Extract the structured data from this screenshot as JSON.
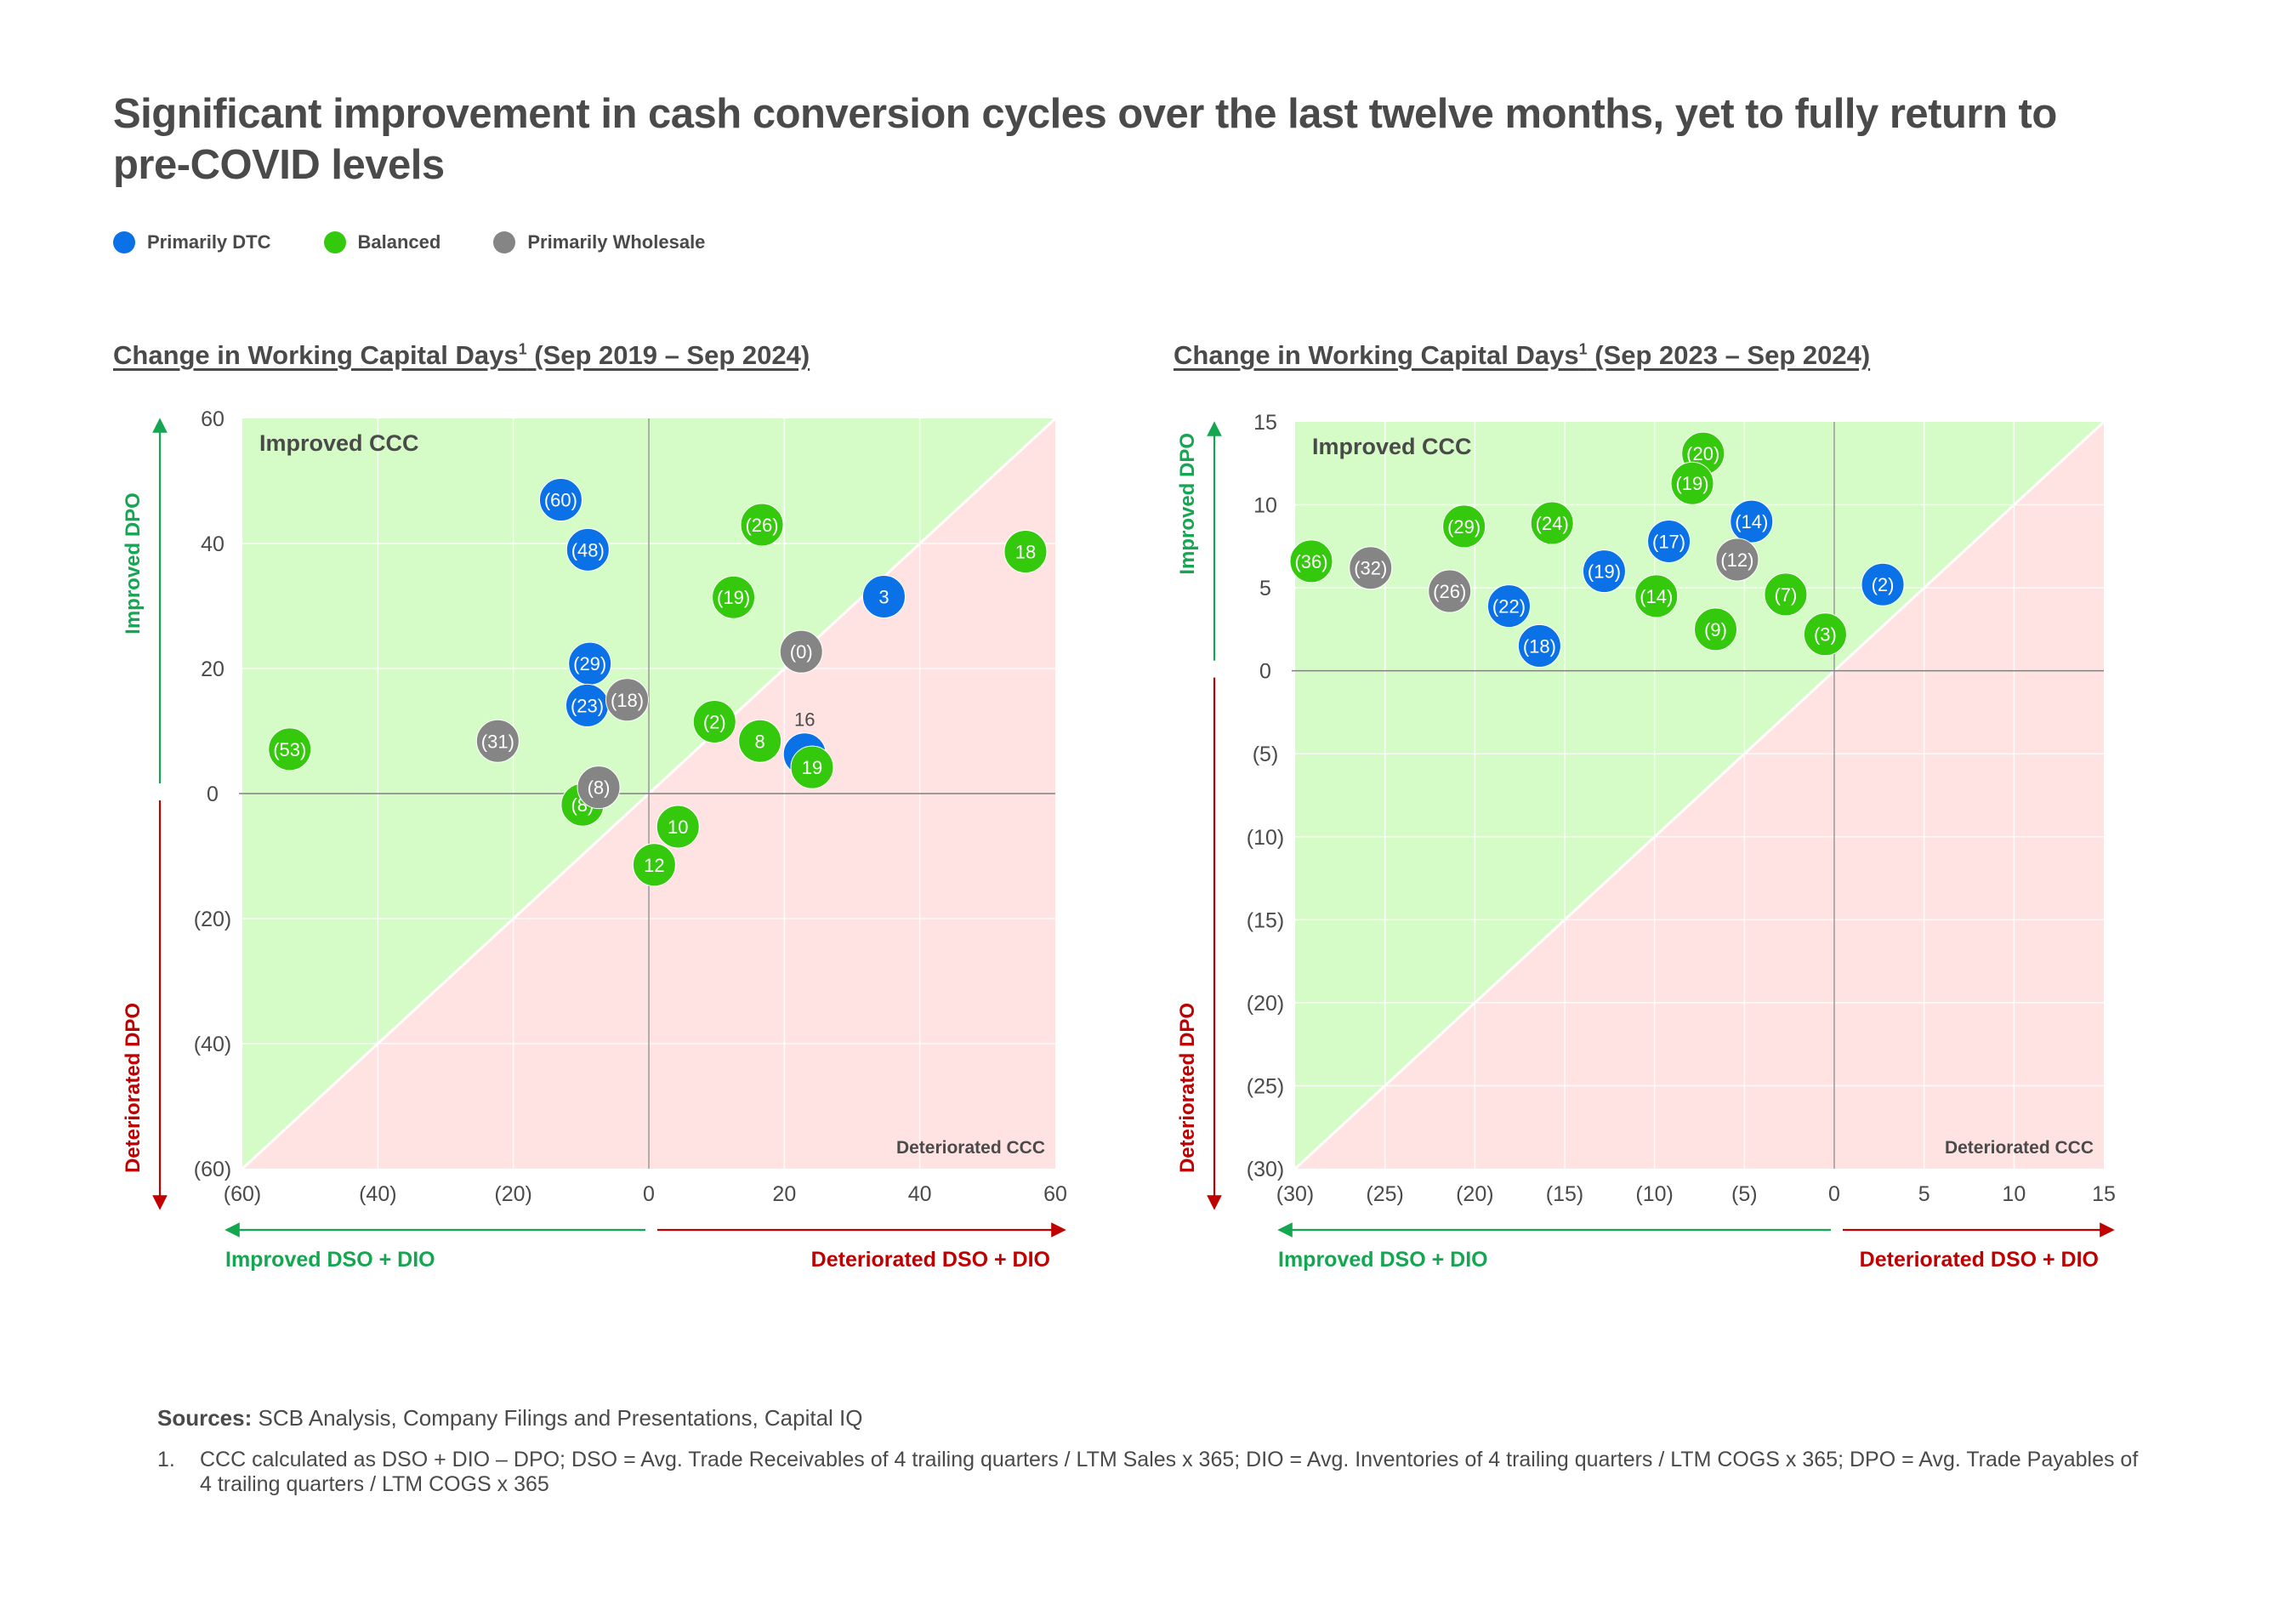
{
  "title": "Significant improvement in cash conversion cycles over the last twelve months, yet to fully return to pre-COVID levels",
  "legend": [
    {
      "label": "Primarily DTC",
      "key": "dtc",
      "color": "#0A72E6"
    },
    {
      "label": "Balanced",
      "key": "balanced",
      "color": "#35C90E"
    },
    {
      "label": "Primarily Wholesale",
      "key": "wholesale",
      "color": "#858585"
    }
  ],
  "colors": {
    "improved_bg": "#D5FCC6",
    "deteriorated_bg": "#FFE3E3",
    "improved_text": "#14A650",
    "deteriorated_text": "#C00000",
    "axis_line": "#7f7f7f",
    "tick_text": "#4a4a4a"
  },
  "chart_data": [
    {
      "type": "scatter",
      "title_main": "Change in Working Capital Days",
      "title_sup": "1",
      "title_period": " (Sep 2019 – Sep 2024)",
      "xlim": [
        -60,
        60
      ],
      "ylim": [
        -60,
        60
      ],
      "xticks": [
        -60,
        -40,
        -20,
        0,
        20,
        40,
        60
      ],
      "yticks": [
        -60,
        -40,
        -20,
        0,
        20,
        40,
        60
      ],
      "xtick_labels": [
        "(60)",
        "(40)",
        "(20)",
        "0",
        "20",
        "40",
        "60"
      ],
      "ytick_labels": [
        "(60)",
        "(40)",
        "(20)",
        "0",
        "20",
        "40",
        "60"
      ],
      "xlabel_left": "Improved DSO + DIO",
      "xlabel_right": "Deteriorated DSO + DIO",
      "ylabel_top": "Improved DPO",
      "ylabel_bottom": "Deteriorated DPO",
      "region_improved": "Improved CCC",
      "region_deteriorated": "Deteriorated CCC",
      "grid": true,
      "points": [
        {
          "x": -13,
          "y": 47,
          "label": "(60)",
          "category": "dtc"
        },
        {
          "x": -9,
          "y": 39,
          "label": "(48)",
          "category": "dtc"
        },
        {
          "x": -8.7,
          "y": 20.8,
          "label": "(29)",
          "category": "dtc"
        },
        {
          "x": -53.0,
          "y": 7.1,
          "label": "(53)",
          "category": "balanced"
        },
        {
          "x": -22.3,
          "y": 8.4,
          "label": "(31)",
          "category": "wholesale"
        },
        {
          "x": -9.8,
          "y": -1.8,
          "label": "(8)",
          "category": "balanced"
        },
        {
          "x": -7.4,
          "y": 1,
          "label": "(8)",
          "category": "wholesale"
        },
        {
          "x": -9.1,
          "y": 14.1,
          "label": "(23)",
          "category": "dtc"
        },
        {
          "x": -3.2,
          "y": 15,
          "label": "(18)",
          "category": "wholesale"
        },
        {
          "x": 16.7,
          "y": 43,
          "label": "(26)",
          "category": "balanced"
        },
        {
          "x": 12.5,
          "y": 31.4,
          "label": "(19)",
          "category": "balanced"
        },
        {
          "x": 34.7,
          "y": 31.5,
          "label": "3",
          "category": "dtc"
        },
        {
          "x": 55.6,
          "y": 38.7,
          "label": "18",
          "category": "balanced"
        },
        {
          "x": 22.5,
          "y": 22.7,
          "label": "(0)",
          "category": "wholesale"
        },
        {
          "x": 9.7,
          "y": 11.5,
          "label": "(2)",
          "category": "balanced"
        },
        {
          "x": 16.4,
          "y": 8.4,
          "label": "8",
          "category": "balanced"
        },
        {
          "x": 23,
          "y": 6.3,
          "label": "16",
          "category": "dtc",
          "label_outside": true
        },
        {
          "x": 24.1,
          "y": 4.2,
          "label": "19",
          "category": "balanced"
        },
        {
          "x": 4.3,
          "y": -5.3,
          "label": "10",
          "category": "balanced"
        },
        {
          "x": 0.8,
          "y": -11.4,
          "label": "12",
          "category": "balanced"
        }
      ]
    },
    {
      "type": "scatter",
      "title_main": "Change in Working Capital Days",
      "title_sup": "1",
      "title_period": " (Sep 2023 – Sep 2024)",
      "xlim": [
        -30,
        15
      ],
      "ylim": [
        -30,
        15
      ],
      "xticks": [
        -30,
        -25,
        -20,
        -15,
        -10,
        -5,
        0,
        5,
        10,
        15
      ],
      "yticks": [
        -30,
        -25,
        -20,
        -15,
        -10,
        -5,
        0,
        5,
        10,
        15
      ],
      "xtick_labels": [
        "(30)",
        "(25)",
        "(20)",
        "(15)",
        "(10)",
        "(5)",
        "0",
        "5",
        "10",
        "15"
      ],
      "ytick_labels": [
        "(30)",
        "(25)",
        "(20)",
        "(15)",
        "(10)",
        "(5)",
        "0",
        "5",
        "10",
        "15"
      ],
      "xlabel_left": "Improved DSO + DIO",
      "xlabel_right": "Deteriorated DSO + DIO",
      "ylabel_top": "Improved DPO",
      "ylabel_bottom": "Deteriorated DPO",
      "region_improved": "Improved CCC",
      "region_deteriorated": "Deteriorated CCC",
      "grid": true,
      "points": [
        {
          "x": -29.1,
          "y": 6.6,
          "label": "(36)",
          "category": "balanced"
        },
        {
          "x": -25.8,
          "y": 6.2,
          "label": "(32)",
          "category": "wholesale"
        },
        {
          "x": -20.6,
          "y": 8.7,
          "label": "(29)",
          "category": "balanced"
        },
        {
          "x": -21.4,
          "y": 4.8,
          "label": "(26)",
          "category": "wholesale"
        },
        {
          "x": -15.7,
          "y": 8.9,
          "label": "(24)",
          "category": "balanced"
        },
        {
          "x": -18.1,
          "y": 3.9,
          "label": "(22)",
          "category": "dtc"
        },
        {
          "x": -16.4,
          "y": 1.5,
          "label": "(18)",
          "category": "dtc"
        },
        {
          "x": -12.8,
          "y": 6.0,
          "label": "(19)",
          "category": "dtc"
        },
        {
          "x": -9.2,
          "y": 7.8,
          "label": "(17)",
          "category": "dtc"
        },
        {
          "x": -9.9,
          "y": 4.5,
          "label": "(14)",
          "category": "balanced"
        },
        {
          "x": -7.3,
          "y": 13.1,
          "label": "(20)",
          "category": "balanced"
        },
        {
          "x": -7.9,
          "y": 11.3,
          "label": "(19)",
          "category": "balanced"
        },
        {
          "x": -6.6,
          "y": 2.5,
          "label": "(9)",
          "category": "balanced"
        },
        {
          "x": -4.6,
          "y": 9.0,
          "label": "(14)",
          "category": "dtc"
        },
        {
          "x": -5.4,
          "y": 6.7,
          "label": "(12)",
          "category": "wholesale"
        },
        {
          "x": -2.7,
          "y": 4.6,
          "label": "(7)",
          "category": "balanced"
        },
        {
          "x": -0.5,
          "y": 2.2,
          "label": "(3)",
          "category": "balanced"
        },
        {
          "x": 2.7,
          "y": 5.2,
          "label": "(2)",
          "category": "dtc"
        }
      ]
    }
  ],
  "sources": {
    "label": "Sources:",
    "text": " SCB Analysis, Company Filings and Presentations, Capital IQ"
  },
  "footnote": {
    "number": "1.",
    "text": "CCC calculated as DSO + DIO – DPO; DSO = Avg. Trade Receivables of 4 trailing quarters / LTM Sales x 365; DIO = Avg. Inventories of 4 trailing quarters / LTM COGS x 365; DPO = Avg. Trade Payables of 4 trailing quarters / LTM COGS x 365"
  }
}
